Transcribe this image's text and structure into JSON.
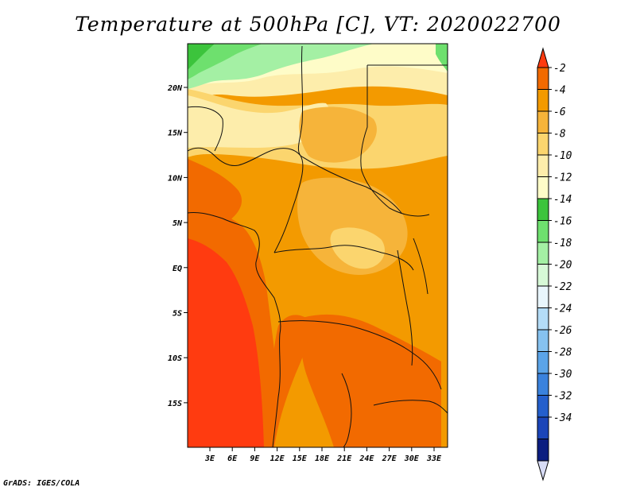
{
  "title": "Temperature at 500hPa [C], VT: 2020022700",
  "credit": "GrADS: IGES/COLA",
  "map": {
    "lon_labels": [
      "3E",
      "6E",
      "9E",
      "12E",
      "15E",
      "18E",
      "21E",
      "24E",
      "27E",
      "30E",
      "33E"
    ],
    "lat_labels": [
      "20N",
      "15N",
      "10N",
      "5N",
      "EQ",
      "5S",
      "10S",
      "15S"
    ]
  },
  "colorbar": {
    "labels": [
      "-2",
      "-4",
      "-6",
      "-8",
      "-10",
      "-12",
      "-14",
      "-16",
      "-18",
      "-20",
      "-22",
      "-24",
      "-26",
      "-28",
      "-30",
      "-32",
      "-34"
    ],
    "colors": [
      "#ff3b10",
      "#f26a00",
      "#f39a00",
      "#f6b43a",
      "#fbd56e",
      "#fdedab",
      "#fefcc8",
      "#3cc43c",
      "#6ee06e",
      "#a4f0a4",
      "#d7f9d7",
      "#e9f6fc",
      "#b4dcf7",
      "#86c2f0",
      "#5ba4e8",
      "#3a82dd",
      "#245fcc",
      "#1b45b8",
      "#0b1e80",
      "#d8dcf6"
    ],
    "units": "C"
  }
}
